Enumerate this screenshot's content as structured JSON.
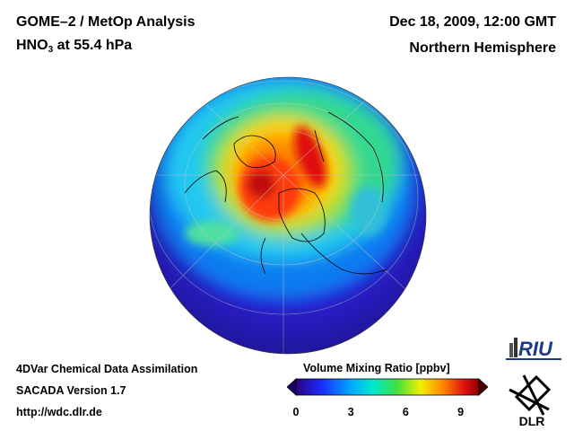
{
  "header": {
    "title": "GOME–2 / MetOp Analysis",
    "species": "HNO",
    "species_sub": "3",
    "level": " at 55.4 hPa",
    "date": "Dec 18, 2009, 12:00 GMT",
    "region": "Northern Hemisphere"
  },
  "footer": {
    "line1": "4DVar Chemical Data Assimilation",
    "line2": "SACADA Version 1.7",
    "line3": "http://wdc.dlr.de"
  },
  "colorbar": {
    "title": "Volume Mixing Ratio [ppbv]",
    "ticks": [
      "0",
      "3",
      "6",
      "9"
    ],
    "min": 0,
    "max": 10
  },
  "logos": {
    "riu": "RIU",
    "dlr": "DLR"
  },
  "colors": {
    "low": "#1a0080",
    "mid_low": "#00aaff",
    "mid": "#33dd33",
    "mid_high": "#ffdd00",
    "high": "#dd1111",
    "max": "#8b0000"
  }
}
